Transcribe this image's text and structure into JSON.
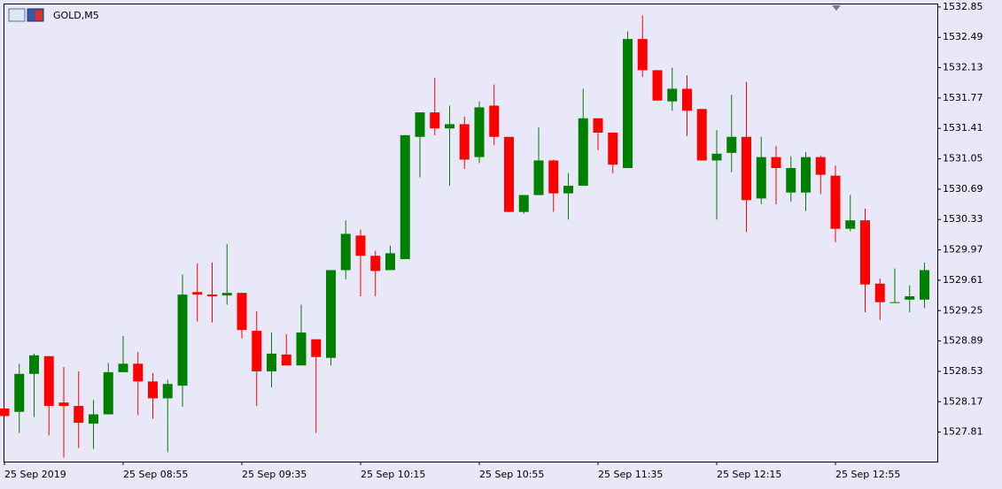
{
  "chart_data": {
    "type": "candlestick",
    "title": "GOLD,M5",
    "categories": [
      "25 Sep 2019",
      null,
      null,
      null,
      null,
      null,
      null,
      null,
      "25 Sep 08:55",
      null,
      null,
      null,
      null,
      null,
      null,
      null,
      "25 Sep 09:35",
      null,
      null,
      null,
      null,
      null,
      null,
      null,
      "25 Sep 10:15",
      null,
      null,
      null,
      null,
      null,
      null,
      null,
      "25 Sep 10:55",
      null,
      null,
      null,
      null,
      null,
      null,
      null,
      "25 Sep 11:35",
      null,
      null,
      null,
      null,
      null,
      null,
      null,
      "25 Sep 12:15",
      null,
      null,
      null,
      null,
      null,
      null,
      null,
      "25 Sep 12:55",
      null,
      null,
      null,
      null,
      null,
      null
    ],
    "open": [
      1528.09,
      1528.05,
      1528.5,
      1528.71,
      1528.16,
      1528.12,
      1527.91,
      1528.02,
      1528.52,
      1528.62,
      1528.41,
      1528.21,
      1528.36,
      1529.47,
      1529.44,
      1529.43,
      1529.46,
      1529.01,
      1528.53,
      1528.73,
      1528.6,
      1528.91,
      1528.69,
      1529.73,
      1530.14,
      1529.9,
      1529.73,
      1529.86,
      1531.31,
      1531.6,
      1531.41,
      1531.46,
      1531.07,
      1531.68,
      1531.31,
      1530.42,
      1530.62,
      1531.03,
      1530.64,
      1530.73,
      1531.53,
      1531.36,
      1530.94,
      1532.47,
      1532.1,
      1531.73,
      1531.88,
      1531.64,
      1531.03,
      1531.12,
      1531.31,
      1530.58,
      1531.07,
      1530.65,
      1530.65,
      1531.07,
      1530.85,
      1530.22,
      1530.32,
      1529.57,
      1529.35,
      1529.38,
      1529.38
    ],
    "high": [
      1528.09,
      1528.62,
      1528.74,
      1528.71,
      1528.58,
      1528.53,
      1528.19,
      1528.63,
      1528.95,
      1528.76,
      1528.51,
      1528.43,
      1529.68,
      1529.81,
      1529.82,
      1530.04,
      1529.46,
      1529.24,
      1528.99,
      1528.97,
      1529.32,
      1528.91,
      1529.73,
      1530.32,
      1530.21,
      1529.96,
      1530.02,
      1531.33,
      1531.6,
      1532.01,
      1531.68,
      1531.55,
      1531.73,
      1531.93,
      1531.31,
      1530.62,
      1531.42,
      1531.04,
      1530.88,
      1531.88,
      1531.53,
      1531.36,
      1532.56,
      1532.75,
      1532.1,
      1532.13,
      1532.04,
      1531.64,
      1531.39,
      1531.81,
      1531.96,
      1531.31,
      1531.2,
      1531.08,
      1531.13,
      1531.09,
      1530.97,
      1530.62,
      1530.46,
      1529.63,
      1529.75,
      1529.55,
      1529.82
    ],
    "low": [
      1528.0,
      1527.8,
      1527.99,
      1527.77,
      1527.51,
      1527.62,
      1527.61,
      1528.02,
      1528.52,
      1528.01,
      1527.97,
      1527.57,
      1528.11,
      1529.12,
      1529.11,
      1529.32,
      1528.92,
      1528.12,
      1528.34,
      1528.6,
      1528.6,
      1527.8,
      1528.6,
      1529.62,
      1529.42,
      1529.42,
      1529.73,
      1529.86,
      1530.83,
      1531.33,
      1530.73,
      1530.93,
      1531.0,
      1531.21,
      1530.42,
      1530.4,
      1530.62,
      1530.42,
      1530.33,
      1530.73,
      1531.15,
      1530.88,
      1530.94,
      1532.02,
      1531.74,
      1531.62,
      1531.32,
      1531.03,
      1530.33,
      1530.89,
      1530.18,
      1530.51,
      1530.51,
      1530.54,
      1530.43,
      1530.63,
      1530.06,
      1530.19,
      1529.23,
      1529.14,
      1529.34,
      1529.23,
      1529.28
    ],
    "close": [
      1528.0,
      1528.5,
      1528.72,
      1528.12,
      1528.12,
      1527.92,
      1528.02,
      1528.52,
      1528.62,
      1528.41,
      1528.21,
      1528.38,
      1529.44,
      1529.44,
      1529.42,
      1529.46,
      1529.02,
      1528.53,
      1528.74,
      1528.6,
      1528.99,
      1528.7,
      1529.73,
      1530.16,
      1529.9,
      1529.72,
      1529.93,
      1531.33,
      1531.6,
      1531.41,
      1531.46,
      1531.04,
      1531.66,
      1531.31,
      1530.42,
      1530.62,
      1531.03,
      1530.64,
      1530.73,
      1531.53,
      1531.36,
      1530.98,
      1532.47,
      1532.1,
      1531.74,
      1531.88,
      1531.62,
      1531.03,
      1531.11,
      1531.31,
      1530.56,
      1531.07,
      1530.94,
      1530.94,
      1531.07,
      1530.86,
      1530.22,
      1530.32,
      1529.56,
      1529.35,
      1529.35,
      1529.42,
      1529.73
    ],
    "up_color": "#008000",
    "down_color": "#ff0000",
    "ylim": [
      1527.46,
      1532.88
    ],
    "yticks": [
      1532.85,
      1532.49,
      1532.13,
      1531.77,
      1531.41,
      1531.05,
      1530.69,
      1530.33,
      1529.97,
      1529.61,
      1529.25,
      1528.89,
      1528.53,
      1528.17,
      1527.81
    ]
  }
}
